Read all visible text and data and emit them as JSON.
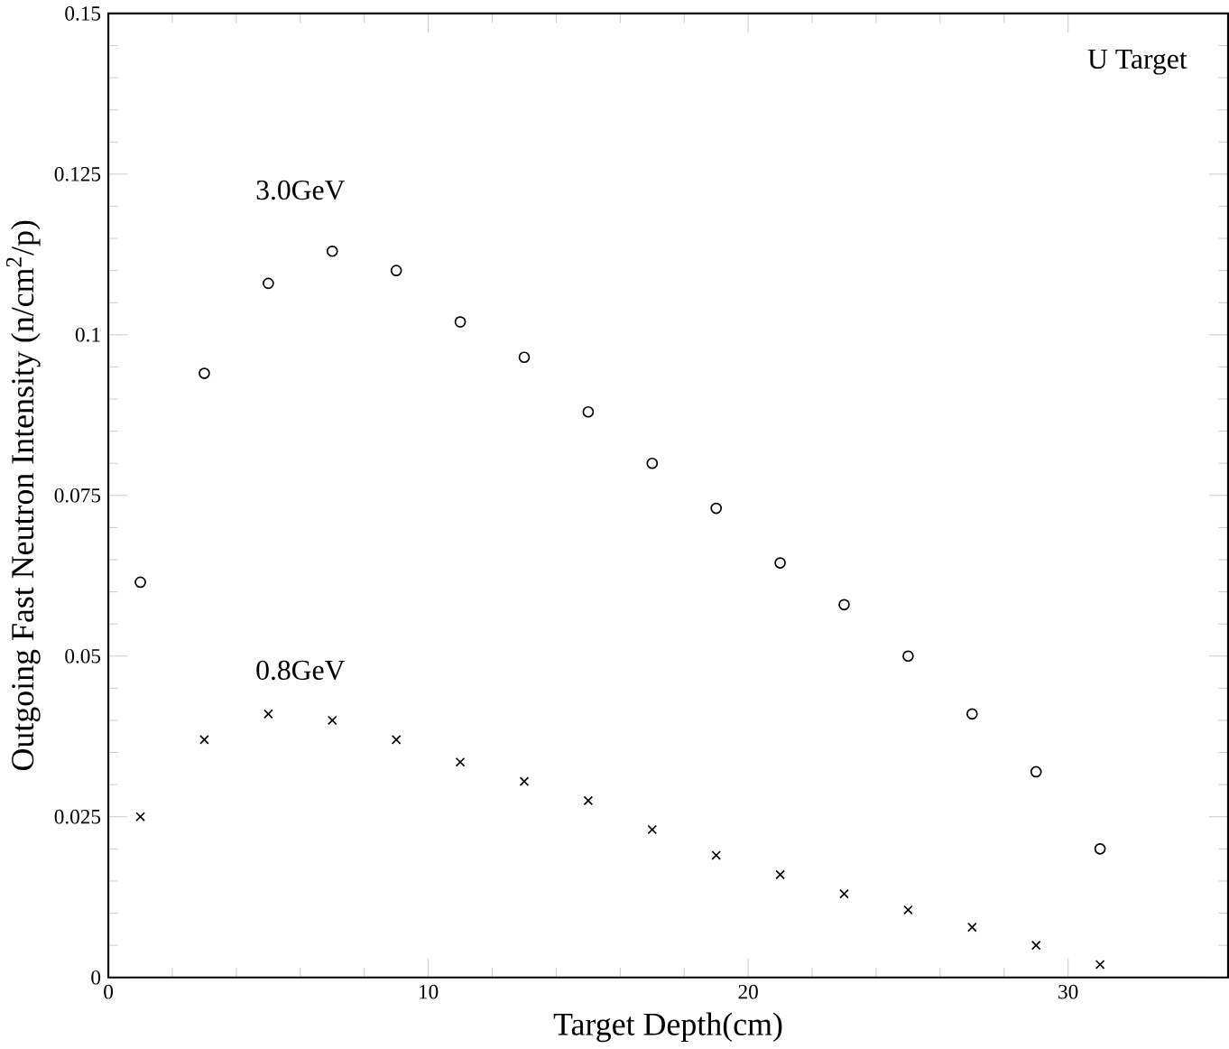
{
  "chart_data": {
    "type": "scatter",
    "xlabel": "Target Depth(cm)",
    "ylabel": "Outgoing Fast Neutron Intensity (n/cm$^{2}$/p)",
    "annotations": [
      "U Target"
    ],
    "xlim": [
      0,
      35
    ],
    "xticks": [
      0,
      10,
      20,
      30
    ],
    "ylim": [
      0,
      0.15
    ],
    "yticks": [
      0,
      0.025,
      0.05,
      0.075,
      0.1,
      0.125,
      0.15
    ],
    "grid": false,
    "legend": false,
    "series": [
      {
        "name": "3.0GeV",
        "color": "#000000",
        "marker": "circle",
        "x": [
          1,
          3,
          5,
          7,
          9,
          11,
          13,
          15,
          17,
          19,
          21,
          23,
          25,
          27,
          29,
          31
        ],
        "values": [
          0.0615,
          0.094,
          0.108,
          0.113,
          0.11,
          0.102,
          0.0965,
          0.088,
          0.08,
          0.073,
          0.0645,
          0.058,
          0.05,
          0.041,
          0.032,
          0.02
        ]
      },
      {
        "name": "0.8GeV",
        "color": "#000000",
        "marker": "cross",
        "x": [
          1,
          3,
          5,
          7,
          9,
          11,
          13,
          15,
          17,
          19,
          21,
          23,
          25,
          27,
          29,
          31
        ],
        "values": [
          0.025,
          0.037,
          0.041,
          0.04,
          0.037,
          0.0335,
          0.0305,
          0.0275,
          0.023,
          0.019,
          0.016,
          0.013,
          0.0105,
          0.0078,
          0.005,
          0.002
        ]
      }
    ]
  }
}
